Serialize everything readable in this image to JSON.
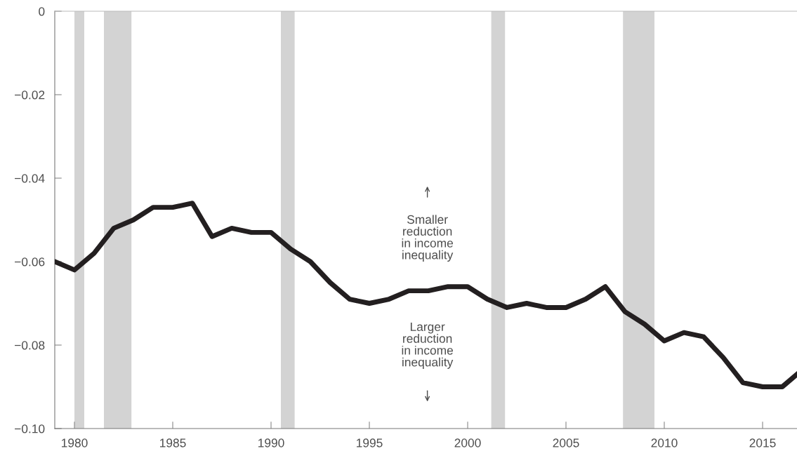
{
  "chart_data": {
    "type": "line",
    "x": [
      1979,
      1980,
      1981,
      1982,
      1983,
      1984,
      1985,
      1986,
      1987,
      1988,
      1989,
      1990,
      1991,
      1992,
      1993,
      1994,
      1995,
      1996,
      1997,
      1998,
      1999,
      2000,
      2001,
      2002,
      2003,
      2004,
      2005,
      2006,
      2007,
      2008,
      2009,
      2010,
      2011,
      2012,
      2013,
      2014,
      2015,
      2016,
      2016.75
    ],
    "series": [
      {
        "color": "#231f20",
        "values": [
          -0.06,
          -0.062,
          -0.058,
          -0.052,
          -0.05,
          -0.047,
          -0.047,
          -0.046,
          -0.054,
          -0.052,
          -0.053,
          -0.053,
          -0.057,
          -0.06,
          -0.065,
          -0.069,
          -0.07,
          -0.069,
          -0.067,
          -0.067,
          -0.066,
          -0.066,
          -0.069,
          -0.071,
          -0.07,
          -0.071,
          -0.071,
          -0.069,
          -0.066,
          -0.072,
          -0.075,
          -0.079,
          -0.077,
          -0.078,
          -0.083,
          -0.089,
          -0.09,
          -0.09,
          -0.087
        ]
      }
    ],
    "xlim": [
      1979,
      2016.75
    ],
    "xticks": [
      1980,
      1985,
      1990,
      1995,
      2000,
      2005,
      2010,
      2015
    ],
    "ylim": [
      -0.1,
      0
    ],
    "yticks": [
      {
        "value": -0.1,
        "label": "−0.10"
      },
      {
        "value": -0.08,
        "label": "−0.08"
      },
      {
        "value": -0.06,
        "label": "−0.06"
      },
      {
        "value": -0.04,
        "label": "−0.04"
      },
      {
        "value": -0.02,
        "label": "−0.02"
      },
      0
    ],
    "bands": [
      {
        "axis": "x",
        "from": 1980.0,
        "to": 1980.5,
        "color": "#d3d3d3"
      },
      {
        "axis": "x",
        "from": 1981.5,
        "to": 1982.9,
        "color": "#d3d3d3"
      },
      {
        "axis": "x",
        "from": 1990.5,
        "to": 1991.2,
        "color": "#d3d3d3"
      },
      {
        "axis": "x",
        "from": 2001.2,
        "to": 2001.9,
        "color": "#d3d3d3"
      },
      {
        "axis": "x",
        "from": 2007.9,
        "to": 2009.5,
        "color": "#d3d3d3"
      }
    ],
    "annotations": [
      "Smaller\nreduction\nin income\ninequality",
      "Larger\nreduction\nin income\ninequality"
    ],
    "grid": false,
    "legend": false,
    "marker": "none",
    "line_style": "solid"
  }
}
